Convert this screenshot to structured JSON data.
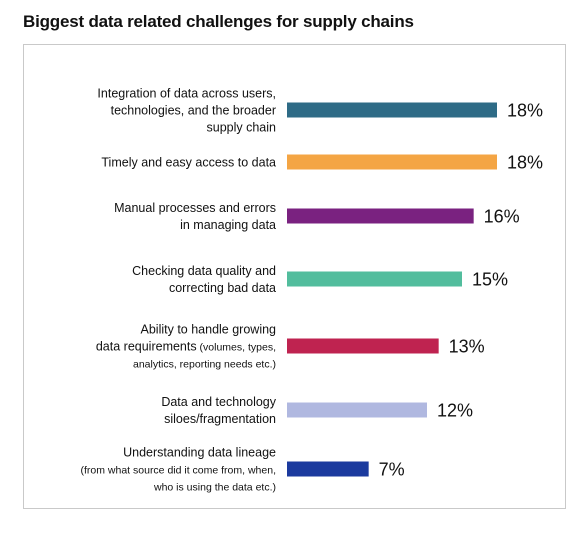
{
  "chart_data": {
    "type": "bar",
    "orientation": "horizontal",
    "title": "Biggest data related challenges for supply chains",
    "categories": [
      {
        "lines": [
          {
            "main": "Integration of data across users,"
          },
          {
            "main": "technologies, and the broader"
          },
          {
            "main": "supply chain"
          }
        ]
      },
      {
        "lines": [
          {
            "main": "Timely and easy access to data"
          }
        ]
      },
      {
        "lines": [
          {
            "main": "Manual processes and errors"
          },
          {
            "main": "in managing data"
          }
        ]
      },
      {
        "lines": [
          {
            "main": "Checking data quality and"
          },
          {
            "main": "correcting bad data"
          }
        ]
      },
      {
        "lines": [
          {
            "main": "Ability to handle growing"
          },
          {
            "main": "data requirements",
            "small": " (volumes, types,"
          },
          {
            "small": "analytics, reporting needs etc.)"
          }
        ]
      },
      {
        "lines": [
          {
            "main": "Data and technology"
          },
          {
            "main": "siloes/fragmentation"
          }
        ]
      },
      {
        "lines": [
          {
            "main": "Understanding data lineage"
          },
          {
            "small": "(from what source did it come from, when,"
          },
          {
            "small": "who is using the data etc.)"
          }
        ]
      }
    ],
    "values": [
      18,
      18,
      16,
      15,
      13,
      12,
      7
    ],
    "value_labels": [
      "18%",
      "18%",
      "16%",
      "15%",
      "13%",
      "12%",
      "7%"
    ],
    "colors": [
      "#2e6b86",
      "#f4a544",
      "#7a2280",
      "#52bd9d",
      "#bf2350",
      "#b0b8e0",
      "#1b3a9e"
    ],
    "xlim": [
      0,
      18
    ],
    "grid": false,
    "legend": "none"
  }
}
